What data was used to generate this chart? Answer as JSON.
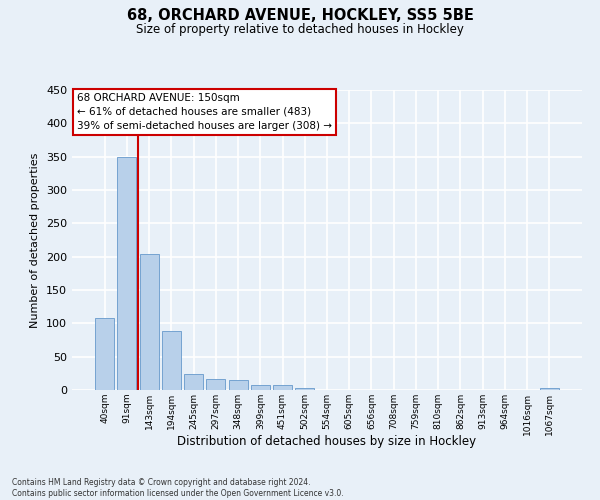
{
  "title": "68, ORCHARD AVENUE, HOCKLEY, SS5 5BE",
  "subtitle": "Size of property relative to detached houses in Hockley",
  "xlabel": "Distribution of detached houses by size in Hockley",
  "ylabel": "Number of detached properties",
  "footer_line1": "Contains HM Land Registry data © Crown copyright and database right 2024.",
  "footer_line2": "Contains public sector information licensed under the Open Government Licence v3.0.",
  "bin_labels": [
    "40sqm",
    "91sqm",
    "143sqm",
    "194sqm",
    "245sqm",
    "297sqm",
    "348sqm",
    "399sqm",
    "451sqm",
    "502sqm",
    "554sqm",
    "605sqm",
    "656sqm",
    "708sqm",
    "759sqm",
    "810sqm",
    "862sqm",
    "913sqm",
    "964sqm",
    "1016sqm",
    "1067sqm"
  ],
  "bar_values": [
    108,
    349,
    204,
    88,
    24,
    16,
    15,
    8,
    7,
    3,
    0,
    0,
    0,
    0,
    0,
    0,
    0,
    0,
    0,
    0,
    3
  ],
  "bar_color": "#b8d0ea",
  "bar_edge_color": "#6699cc",
  "background_color": "#e8f0f8",
  "grid_color": "#ffffff",
  "ylim": [
    0,
    450
  ],
  "yticks": [
    0,
    50,
    100,
    150,
    200,
    250,
    300,
    350,
    400,
    450
  ],
  "annotation_title": "68 ORCHARD AVENUE: 150sqm",
  "annotation_line2": "← 61% of detached houses are smaller (483)",
  "annotation_line3": "39% of semi-detached houses are larger (308) →",
  "annotation_box_color": "#ffffff",
  "annotation_border_color": "#cc0000",
  "red_line_color": "#cc0000",
  "red_line_index": 1.5
}
